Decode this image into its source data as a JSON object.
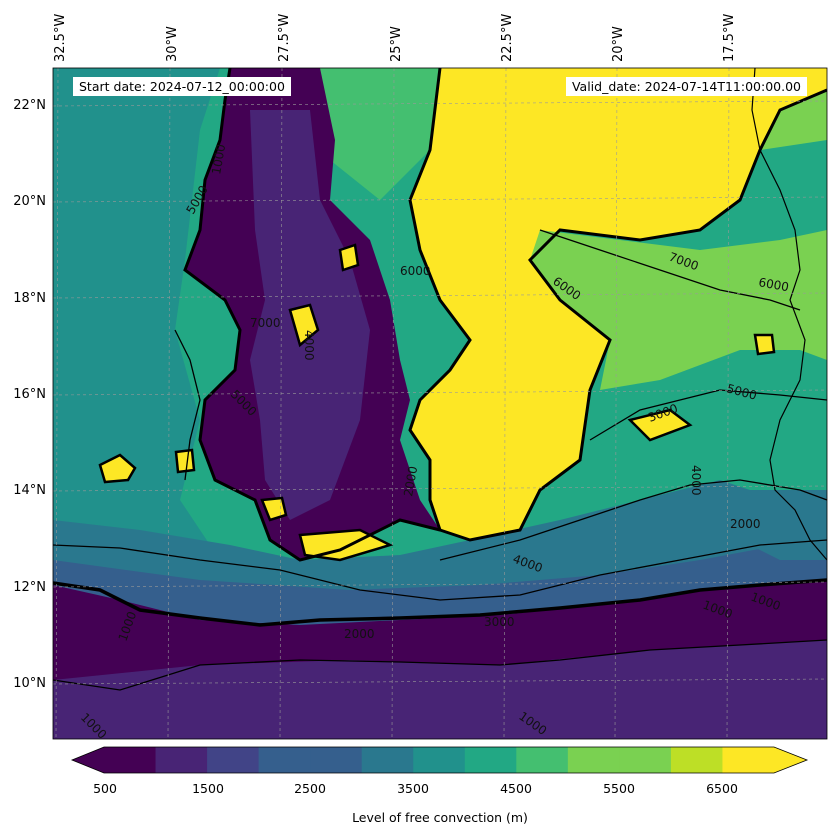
{
  "header": {
    "start_date": "Start date: 2024-07-12_00:00:00",
    "valid_date": "Valid_date: 2024-07-14T11:00:00.00"
  },
  "longitude_labels": [
    "32.5°W",
    "30°W",
    "27.5°W",
    "25°W",
    "22.5°W",
    "20°W",
    "17.5°W"
  ],
  "latitude_labels": [
    "22°N",
    "20°N",
    "18°N",
    "16°N",
    "14°N",
    "12°N",
    "10°N"
  ],
  "colorbar": {
    "label": "Level of free convection (m)",
    "tick_labels": [
      "500",
      "1500",
      "2500",
      "3500",
      "4500",
      "5500",
      "6500"
    ],
    "colors": [
      "#440154",
      "#482475",
      "#414487",
      "#355f8d",
      "#2a788e",
      "#21918c",
      "#22a884",
      "#44bf70",
      "#7ad151",
      "#bddf26",
      "#fde725"
    ],
    "under_color": "#440154",
    "over_color": "#fde725"
  },
  "contour_labels": [
    "1000",
    "1000",
    "2000",
    "3000",
    "4000",
    "5000",
    "6000",
    "7000",
    "6000",
    "5000",
    "4000",
    "1000",
    "1000",
    "1000",
    "2000",
    "3000",
    "4000",
    "5000",
    "6000",
    "7000",
    "1000",
    "2000"
  ],
  "icons": {
    "map": "filled-contour-map",
    "coastline": "coastline-west-africa"
  }
}
